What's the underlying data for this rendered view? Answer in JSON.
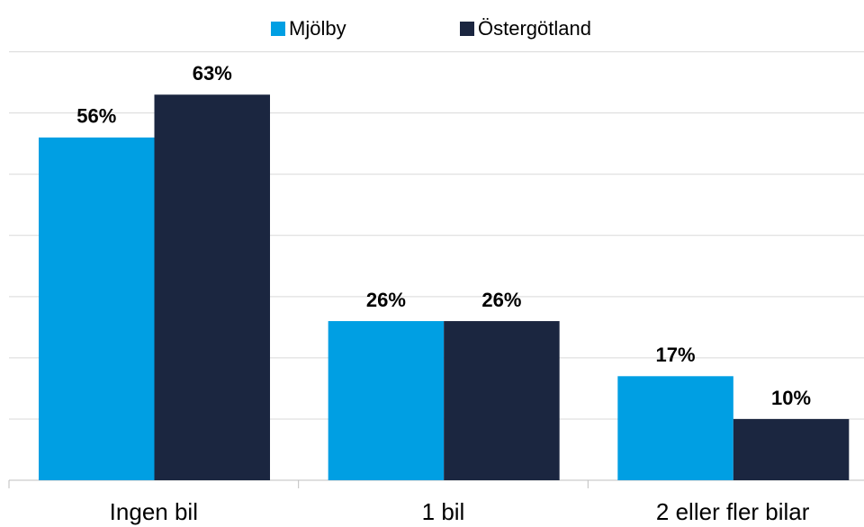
{
  "chart_data": {
    "type": "bar",
    "categories": [
      "Ingen bil",
      "1 bil",
      "2 eller fler bilar"
    ],
    "series": [
      {
        "name": "Mjölby",
        "color": "#009fe3",
        "values": [
          56,
          26,
          17
        ],
        "value_labels": [
          "56%",
          "26%",
          "17%"
        ]
      },
      {
        "name": "Östergötland",
        "color": "#1b2640",
        "values": [
          63,
          26,
          10
        ],
        "value_labels": [
          "63%",
          "26%",
          "10%"
        ]
      }
    ],
    "ylim": [
      0,
      70
    ],
    "yticks": [
      0,
      10,
      20,
      30,
      40,
      50,
      60,
      70
    ],
    "grid": true,
    "legend": "top"
  }
}
